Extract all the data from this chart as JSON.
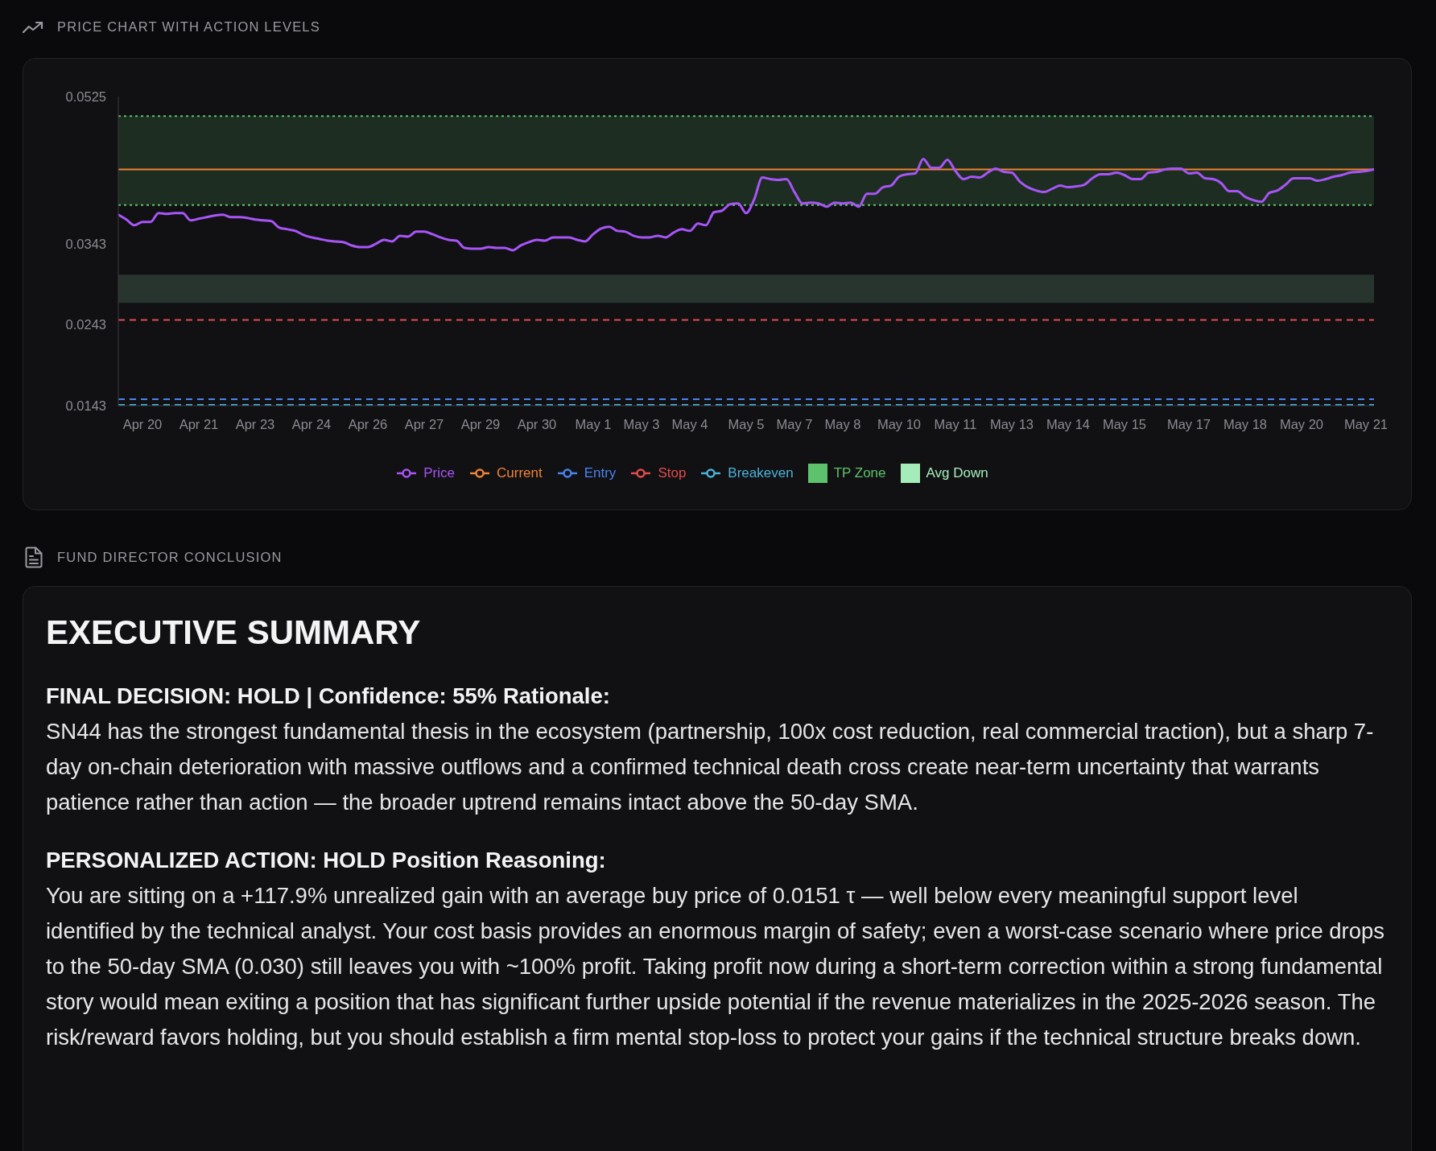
{
  "chart_data": {
    "type": "line",
    "title": "PRICE CHART WITH ACTION LEVELS",
    "categories": [
      null,
      null,
      null,
      "Apr 20",
      null,
      null,
      null,
      null,
      null,
      null,
      "Apr 21",
      null,
      null,
      null,
      null,
      null,
      null,
      "Apr 23",
      null,
      null,
      null,
      null,
      null,
      null,
      "Apr 24",
      null,
      null,
      null,
      null,
      null,
      null,
      "Apr 26",
      null,
      null,
      null,
      null,
      null,
      null,
      "Apr 27",
      null,
      null,
      null,
      null,
      null,
      null,
      "Apr 29",
      null,
      null,
      null,
      null,
      null,
      null,
      "Apr 30",
      null,
      null,
      null,
      null,
      null,
      null,
      "May 1",
      null,
      null,
      null,
      null,
      null,
      "May 3",
      null,
      null,
      null,
      null,
      null,
      "May 4",
      null,
      null,
      null,
      null,
      null,
      null,
      "May 5",
      null,
      null,
      null,
      null,
      null,
      "May 7",
      null,
      null,
      null,
      null,
      null,
      "May 8",
      null,
      null,
      null,
      null,
      null,
      null,
      "May 10",
      null,
      null,
      null,
      null,
      null,
      null,
      "May 11",
      null,
      null,
      null,
      null,
      null,
      null,
      "May 13",
      null,
      null,
      null,
      null,
      null,
      null,
      "May 14",
      null,
      null,
      null,
      null,
      null,
      null,
      "May 15",
      null,
      null,
      null,
      null,
      null,
      null,
      null,
      "May 17",
      null,
      null,
      null,
      null,
      null,
      null,
      "May 18",
      null,
      null,
      null,
      null,
      null,
      null,
      "May 20",
      null,
      null,
      null,
      null,
      null,
      null,
      null,
      "May 21",
      null
    ],
    "series": [
      {
        "name": "Price",
        "color": "#a855f7",
        "values": [
          0.0379,
          0.0373,
          0.0366,
          0.037,
          0.037,
          0.0381,
          0.038,
          0.0381,
          0.0381,
          0.0372,
          0.0374,
          0.0376,
          0.0378,
          0.0379,
          0.0376,
          0.0376,
          0.0375,
          0.0373,
          0.0372,
          0.0371,
          0.0363,
          0.0361,
          0.0359,
          0.0354,
          0.0351,
          0.0349,
          0.0347,
          0.0346,
          0.0345,
          0.0341,
          0.0339,
          0.0339,
          0.0343,
          0.0348,
          0.0346,
          0.0353,
          0.0352,
          0.0358,
          0.0358,
          0.0355,
          0.0351,
          0.0348,
          0.0347,
          0.0338,
          0.0337,
          0.0337,
          0.0339,
          0.0338,
          0.0338,
          0.0335,
          0.0341,
          0.0345,
          0.0348,
          0.0347,
          0.0351,
          0.0351,
          0.0351,
          0.0348,
          0.0346,
          0.0355,
          0.0362,
          0.0364,
          0.0359,
          0.0358,
          0.0353,
          0.0351,
          0.0351,
          0.0353,
          0.0351,
          0.0357,
          0.0361,
          0.0359,
          0.0368,
          0.0366,
          0.0382,
          0.0384,
          0.0392,
          0.0393,
          0.0381,
          0.0398,
          0.0425,
          0.0423,
          0.0422,
          0.0423,
          0.0407,
          0.0393,
          0.0394,
          0.0393,
          0.0389,
          0.0394,
          0.0393,
          0.0394,
          0.0389,
          0.0405,
          0.0405,
          0.0413,
          0.0415,
          0.0426,
          0.0429,
          0.043,
          0.0448,
          0.0437,
          0.0437,
          0.0447,
          0.0433,
          0.0423,
          0.0426,
          0.0425,
          0.0431,
          0.0436,
          0.0432,
          0.0431,
          0.042,
          0.0413,
          0.0409,
          0.0407,
          0.0411,
          0.0415,
          0.0413,
          0.0414,
          0.0416,
          0.0424,
          0.0429,
          0.0429,
          0.0431,
          0.0428,
          0.0423,
          0.0423,
          0.0431,
          0.0432,
          0.0435,
          0.0436,
          0.0436,
          0.043,
          0.0431,
          0.0424,
          0.0423,
          0.0418,
          0.0408,
          0.0408,
          0.0401,
          0.0397,
          0.0395,
          0.0406,
          0.0409,
          0.0416,
          0.0424,
          0.0424,
          0.0424,
          0.0421,
          0.0423,
          0.0426,
          0.0428,
          0.0431,
          0.0432,
          0.0433,
          0.0435
        ]
      }
    ],
    "ylim": [
      0.0143,
      0.0525
    ],
    "yticks": [
      0.0525,
      0.0343,
      0.0243,
      0.0143
    ],
    "ref_lines": [
      {
        "axis": "y",
        "value": 0.0435,
        "label": "Current",
        "color": "#f08433",
        "line_style": "solid"
      },
      {
        "axis": "y",
        "value": 0.0151,
        "label": "Entry",
        "color": "#4b83f0",
        "line_style": "dashed"
      },
      {
        "axis": "y",
        "value": 0.0249,
        "label": "Stop",
        "color": "#e24c4c",
        "line_style": "dashed"
      },
      {
        "axis": "y",
        "value": 0.0501,
        "color": "#5ec16b",
        "line_style": "dotted"
      },
      {
        "axis": "y",
        "value": 0.0391,
        "color": "#5ec16b",
        "line_style": "dotted"
      },
      {
        "axis": "y",
        "value": 0.0144,
        "label": "Breakeven",
        "color": "#4ab3d8",
        "line_style": "dashed"
      }
    ],
    "bands": [
      {
        "axis": "y",
        "from": 0.0391,
        "to": 0.0501,
        "label": "TP Zone",
        "color": "#5ec16b"
      },
      {
        "axis": "y",
        "from": 0.027,
        "to": 0.0305,
        "label": "Avg Down",
        "color": "#a4ecb9"
      }
    ],
    "legend": "bottom",
    "annotations": [
      "FUND DIRECTOR CONCLUSION",
      "EXECUTIVE SUMMARY",
      "FINAL DECISION: HOLD | Confidence: 55% Rationale:",
      "SN44 has the strongest fundamental thesis in the ecosystem (partnership, 100x cost reduction, real commercial traction), but a sharp 7-day on-chain deterioration with massive outflows and a confirmed technical death cross create near-term uncertainty that warrants patience rather than action — the broader uptrend remains intact above the 50-day SMA.",
      "PERSONALIZED ACTION: HOLD Position Reasoning:",
      "You are sitting on a +117.9% unrealized gain with an average buy price of 0.0151 τ — well below every meaningful support level identified by the technical analyst. Your cost basis provides an enormous margin of safety; even a worst-case scenario where price drops to the 50-day SMA (0.030) still leaves you with ~100% profit. Taking profit now during a short-term correction within a strong fundamental story would mean exiting a position that has significant further upside potential if the revenue materializes in the 2025-2026 season. The risk/reward favors holding, but you should establish a firm mental stop-loss to protect your gains if the technical structure breaks down."
    ]
  }
}
